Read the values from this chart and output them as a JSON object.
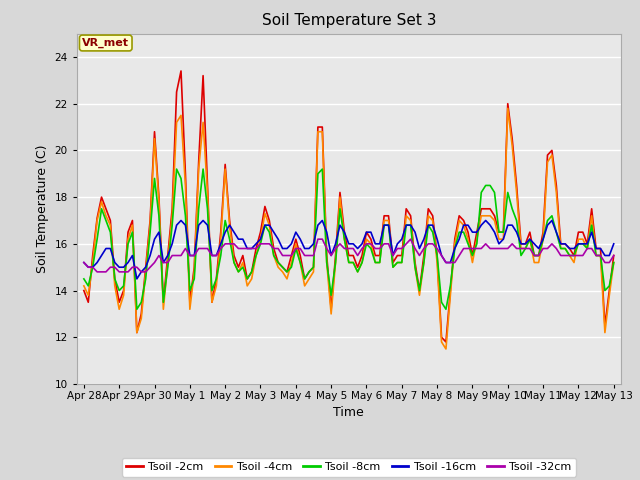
{
  "title": "Soil Temperature Set 3",
  "xlabel": "Time",
  "ylabel": "Soil Temperature (C)",
  "ylim": [
    10,
    25
  ],
  "yticks": [
    10,
    12,
    14,
    16,
    18,
    20,
    22,
    24
  ],
  "bg_color": "#d8d8d8",
  "plot_bg": "#e8e8e8",
  "grid_color": "white",
  "annotation_text": "VR_met",
  "annotation_box_color": "#ffffcc",
  "annotation_text_color": "#8b0000",
  "colors": {
    "Tsoil -2cm": "#dd0000",
    "Tsoil -4cm": "#ff8800",
    "Tsoil -8cm": "#00cc00",
    "Tsoil -16cm": "#0000cc",
    "Tsoil -32cm": "#aa00aa"
  },
  "line_width": 1.2,
  "x_labels": [
    "Apr 28",
    "Apr 29",
    "Apr 30",
    "May 1",
    "May 2",
    "May 3",
    "May 4",
    "May 5",
    "May 6",
    "May 7",
    "May 8",
    "May 9",
    "May 10",
    "May 11",
    "May 12",
    "May 13"
  ],
  "tsoil_2cm": [
    14.0,
    13.5,
    15.5,
    17.1,
    18.0,
    17.5,
    17.0,
    14.5,
    13.5,
    14.0,
    16.5,
    17.0,
    12.2,
    13.0,
    15.0,
    17.0,
    20.8,
    18.0,
    13.5,
    15.5,
    17.5,
    22.5,
    23.4,
    19.0,
    13.5,
    15.0,
    19.5,
    23.2,
    18.5,
    13.5,
    14.5,
    16.5,
    19.4,
    17.0,
    15.5,
    15.0,
    15.5,
    14.5,
    14.8,
    15.8,
    16.5,
    17.6,
    17.0,
    15.8,
    15.2,
    15.0,
    14.8,
    15.5,
    16.2,
    15.5,
    14.5,
    14.8,
    15.0,
    21.0,
    21.0,
    15.5,
    13.2,
    15.5,
    18.2,
    16.5,
    15.5,
    15.5,
    15.0,
    15.5,
    16.5,
    16.2,
    15.5,
    15.5,
    17.2,
    17.2,
    15.2,
    15.5,
    15.5,
    17.5,
    17.2,
    15.2,
    14.0,
    15.5,
    17.5,
    17.2,
    15.5,
    12.0,
    11.8,
    14.0,
    16.2,
    17.2,
    17.0,
    16.5,
    15.5,
    16.5,
    17.5,
    17.5,
    17.5,
    17.2,
    16.5,
    16.5,
    22.0,
    20.5,
    18.5,
    16.0,
    16.0,
    16.5,
    15.5,
    15.5,
    16.5,
    19.8,
    20.0,
    18.5,
    16.0,
    16.0,
    15.8,
    15.5,
    16.5,
    16.5,
    16.0,
    17.5,
    15.8,
    15.8,
    12.5,
    14.0,
    15.5
  ],
  "tsoil_4cm": [
    14.2,
    13.8,
    15.2,
    17.0,
    17.8,
    17.2,
    16.8,
    14.2,
    13.2,
    13.8,
    16.2,
    16.8,
    12.2,
    12.8,
    14.8,
    16.8,
    20.5,
    17.8,
    13.2,
    15.2,
    17.2,
    21.2,
    21.5,
    18.5,
    13.2,
    14.8,
    19.2,
    21.2,
    18.2,
    13.5,
    14.2,
    16.2,
    19.2,
    16.8,
    15.2,
    14.8,
    15.2,
    14.2,
    14.5,
    15.5,
    16.2,
    17.3,
    16.8,
    15.5,
    15.0,
    14.8,
    14.5,
    15.2,
    16.0,
    15.2,
    14.2,
    14.5,
    14.8,
    20.8,
    20.8,
    15.2,
    13.0,
    15.2,
    18.0,
    16.2,
    15.2,
    15.2,
    14.8,
    15.2,
    16.2,
    16.0,
    15.2,
    15.2,
    17.0,
    17.0,
    15.0,
    15.2,
    15.2,
    17.2,
    17.0,
    15.0,
    13.8,
    15.2,
    17.2,
    17.0,
    15.2,
    11.8,
    11.5,
    13.8,
    16.0,
    17.0,
    16.8,
    16.2,
    15.2,
    16.2,
    17.2,
    17.2,
    17.2,
    17.0,
    16.2,
    16.2,
    21.8,
    20.2,
    18.2,
    15.8,
    15.8,
    16.2,
    15.2,
    15.2,
    16.2,
    19.5,
    19.8,
    18.2,
    15.8,
    15.8,
    15.5,
    15.2,
    16.2,
    16.2,
    15.8,
    17.2,
    15.5,
    15.5,
    12.2,
    13.8,
    15.2
  ],
  "tsoil_8cm": [
    14.5,
    14.2,
    15.0,
    16.2,
    17.5,
    17.0,
    16.5,
    14.5,
    14.0,
    14.2,
    16.0,
    16.5,
    13.2,
    13.5,
    14.5,
    16.5,
    18.8,
    17.2,
    13.5,
    15.0,
    16.8,
    19.2,
    18.8,
    17.2,
    14.0,
    14.5,
    17.5,
    19.2,
    17.5,
    14.0,
    14.5,
    15.5,
    17.0,
    16.2,
    15.2,
    14.8,
    15.0,
    14.5,
    14.8,
    15.5,
    16.0,
    16.8,
    16.5,
    15.5,
    15.2,
    15.0,
    14.8,
    15.0,
    15.8,
    15.2,
    14.5,
    14.8,
    15.0,
    19.0,
    19.2,
    15.2,
    13.8,
    15.2,
    17.5,
    16.2,
    15.2,
    15.2,
    14.8,
    15.2,
    16.0,
    15.8,
    15.2,
    15.2,
    16.8,
    16.8,
    15.0,
    15.2,
    15.2,
    16.8,
    16.8,
    15.0,
    14.0,
    15.2,
    16.8,
    16.5,
    15.5,
    13.5,
    13.2,
    14.2,
    15.8,
    16.5,
    16.5,
    16.0,
    15.5,
    16.0,
    18.2,
    18.5,
    18.5,
    18.2,
    16.5,
    16.5,
    18.2,
    17.5,
    17.0,
    15.5,
    15.8,
    16.2,
    15.5,
    15.5,
    16.2,
    17.0,
    17.2,
    16.5,
    15.8,
    15.8,
    15.5,
    15.5,
    16.0,
    16.0,
    15.8,
    16.8,
    15.5,
    15.5,
    14.0,
    14.2,
    15.2
  ],
  "tsoil_16cm": [
    15.2,
    15.0,
    15.0,
    15.2,
    15.5,
    15.8,
    15.8,
    15.2,
    15.0,
    15.0,
    15.2,
    15.5,
    14.5,
    14.8,
    15.0,
    15.5,
    16.2,
    16.5,
    15.2,
    15.5,
    16.0,
    16.8,
    17.0,
    16.8,
    15.5,
    15.5,
    16.8,
    17.0,
    16.8,
    15.5,
    15.5,
    16.0,
    16.5,
    16.8,
    16.5,
    16.2,
    16.2,
    15.8,
    15.8,
    16.0,
    16.2,
    16.8,
    16.8,
    16.5,
    16.2,
    15.8,
    15.8,
    16.0,
    16.5,
    16.2,
    15.8,
    15.8,
    16.0,
    16.8,
    17.0,
    16.5,
    15.5,
    16.0,
    16.8,
    16.5,
    16.0,
    16.0,
    15.8,
    16.0,
    16.5,
    16.5,
    16.0,
    16.0,
    16.8,
    16.8,
    15.5,
    16.0,
    16.2,
    16.8,
    16.8,
    16.5,
    15.8,
    16.2,
    16.8,
    16.8,
    16.2,
    15.5,
    15.2,
    15.2,
    15.8,
    16.2,
    16.8,
    16.8,
    16.5,
    16.5,
    16.8,
    17.0,
    16.8,
    16.5,
    16.0,
    16.2,
    16.8,
    16.8,
    16.5,
    16.0,
    16.0,
    16.2,
    16.0,
    15.8,
    16.2,
    16.8,
    17.0,
    16.5,
    16.0,
    16.0,
    15.8,
    15.8,
    16.0,
    16.0,
    16.0,
    16.5,
    15.8,
    15.8,
    15.5,
    15.5,
    16.0
  ],
  "tsoil_32cm": [
    15.2,
    15.0,
    15.0,
    14.8,
    14.8,
    14.8,
    15.0,
    15.0,
    14.8,
    14.8,
    14.8,
    15.0,
    15.0,
    14.8,
    14.8,
    15.0,
    15.2,
    15.5,
    15.2,
    15.2,
    15.5,
    15.5,
    15.5,
    15.8,
    15.5,
    15.5,
    15.8,
    15.8,
    15.8,
    15.5,
    15.5,
    15.8,
    16.0,
    16.0,
    16.0,
    15.8,
    15.8,
    15.8,
    15.8,
    15.8,
    16.0,
    16.0,
    16.0,
    15.8,
    15.8,
    15.5,
    15.5,
    15.5,
    15.8,
    15.8,
    15.5,
    15.5,
    15.5,
    16.2,
    16.2,
    15.8,
    15.5,
    15.8,
    16.0,
    15.8,
    15.8,
    15.8,
    15.5,
    15.8,
    16.0,
    16.0,
    15.8,
    15.8,
    16.0,
    16.0,
    15.5,
    15.8,
    15.8,
    16.0,
    16.2,
    15.8,
    15.5,
    15.8,
    16.0,
    16.0,
    15.8,
    15.5,
    15.2,
    15.2,
    15.2,
    15.5,
    15.8,
    15.8,
    15.8,
    15.8,
    15.8,
    16.0,
    15.8,
    15.8,
    15.8,
    15.8,
    15.8,
    16.0,
    15.8,
    15.8,
    15.8,
    15.8,
    15.5,
    15.5,
    15.8,
    15.8,
    16.0,
    15.8,
    15.5,
    15.5,
    15.5,
    15.5,
    15.5,
    15.5,
    15.8,
    15.8,
    15.5,
    15.5,
    15.2,
    15.2,
    15.5
  ]
}
